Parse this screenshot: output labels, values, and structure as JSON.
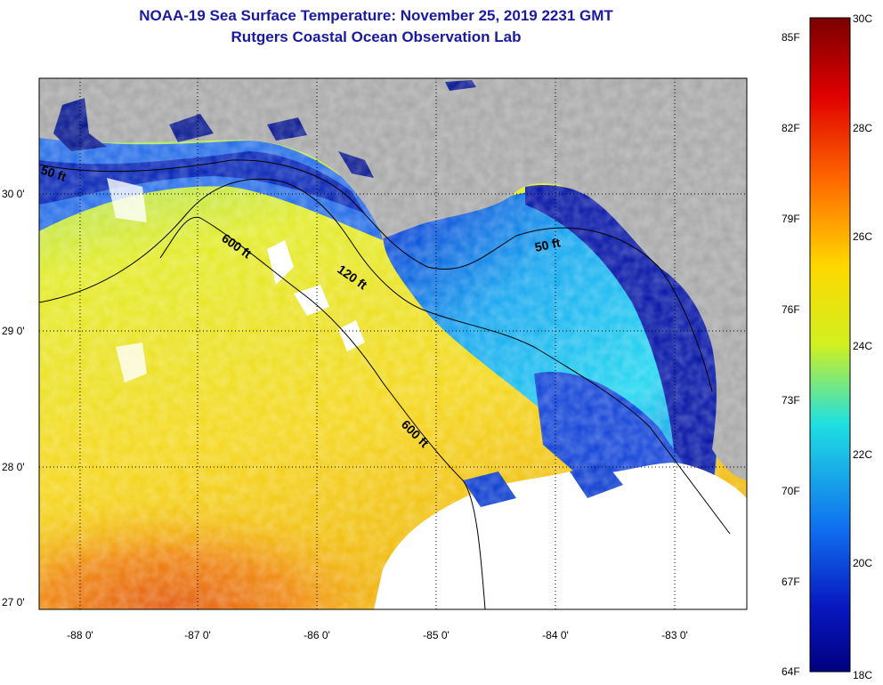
{
  "title_line1": "NOAA-19 Sea Surface Temperature:  November 25, 2019 2231 GMT",
  "title_line2": "Rutgers Coastal Ocean Observation Lab",
  "lat_labels": [
    "30 0'",
    "29 0'",
    "28 0'",
    "27 0'"
  ],
  "lon_labels": [
    "-88 0'",
    "-87 0'",
    "-86 0'",
    "-85 0'",
    "-84 0'",
    "-83 0'"
  ],
  "contour_labels": [
    "50 ft",
    "600 ft",
    "120 ft",
    "50 ft",
    "600 ft"
  ],
  "colorbar": {
    "fahrenheit": [
      "85F",
      "82F",
      "79F",
      "76F",
      "73F",
      "70F",
      "67F",
      "64F"
    ],
    "celsius": [
      "30C",
      "28C",
      "26C",
      "24C",
      "22C",
      "20C",
      "18C"
    ]
  },
  "colors": {
    "land": "#a9a9a9",
    "cloud": "#ffffff",
    "title": "#1a1aa0",
    "warm": "#e25a10",
    "cold": "#000a8c"
  }
}
